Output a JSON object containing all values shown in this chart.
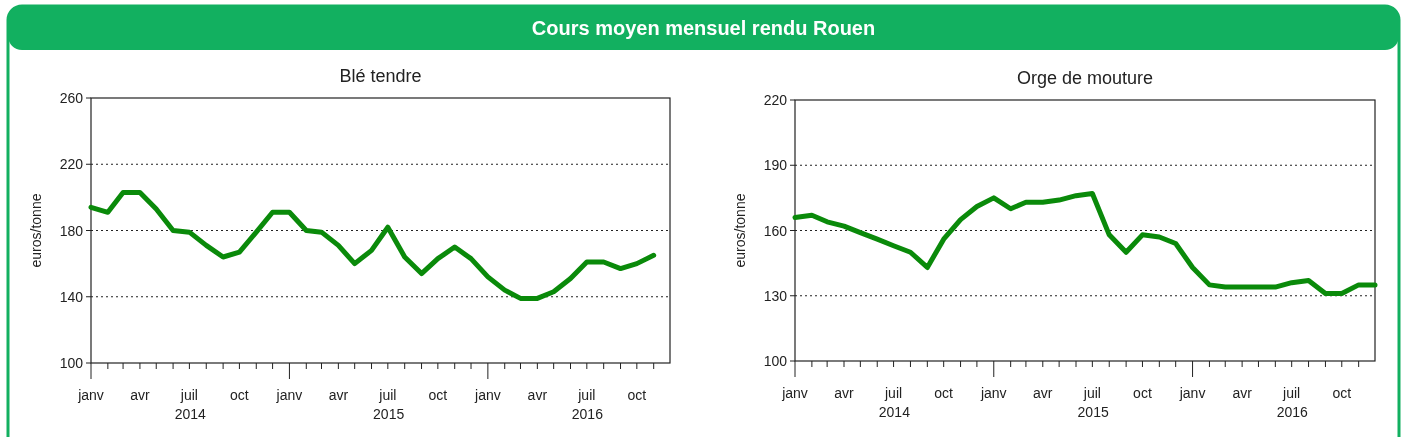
{
  "chart_data": [
    {
      "type": "other",
      "title": "Cours moyen mensuel rendu Rouen"
    },
    {
      "type": "line",
      "title": "Blé tendre",
      "ylabel": "euros/tonne",
      "x": [
        "2014-01",
        "2014-02",
        "2014-03",
        "2014-04",
        "2014-05",
        "2014-06",
        "2014-07",
        "2014-08",
        "2014-09",
        "2014-10",
        "2014-11",
        "2014-12",
        "2015-01",
        "2015-02",
        "2015-03",
        "2015-04",
        "2015-05",
        "2015-06",
        "2015-07",
        "2015-08",
        "2015-09",
        "2015-10",
        "2015-11",
        "2015-12",
        "2016-01",
        "2016-02",
        "2016-03",
        "2016-04",
        "2016-05",
        "2016-06",
        "2016-07",
        "2016-08",
        "2016-09",
        "2016-10",
        "2016-11"
      ],
      "series": [
        {
          "color": "#0a8a0a",
          "values": [
            194,
            191,
            203,
            203,
            193,
            180,
            179,
            171,
            164,
            167,
            179,
            191,
            191,
            180,
            179,
            171,
            160,
            168,
            182,
            164,
            154,
            163,
            170,
            163,
            152,
            144,
            139,
            139,
            143,
            151,
            161,
            161,
            157,
            160,
            165
          ]
        }
      ],
      "xlim": [
        "2014-01",
        "2016-12"
      ],
      "xticks": [
        {
          "value": "2014-01",
          "label": "janv"
        },
        {
          "value": "2014-02",
          "label": null
        },
        {
          "value": "2014-03",
          "label": null
        },
        {
          "value": "2014-04",
          "label": "avr"
        },
        {
          "value": "2014-05",
          "label": null
        },
        {
          "value": "2014-06",
          "label": null
        },
        {
          "value": "2014-07",
          "label": "juil"
        },
        {
          "value": "2014-08",
          "label": null
        },
        {
          "value": "2014-09",
          "label": null
        },
        {
          "value": "2014-10",
          "label": "oct"
        },
        {
          "value": "2014-11",
          "label": null
        },
        {
          "value": "2014-12",
          "label": null
        },
        {
          "value": "2015-01",
          "label": "janv"
        },
        {
          "value": "2015-02",
          "label": null
        },
        {
          "value": "2015-03",
          "label": null
        },
        {
          "value": "2015-04",
          "label": "avr"
        },
        {
          "value": "2015-05",
          "label": null
        },
        {
          "value": "2015-06",
          "label": null
        },
        {
          "value": "2015-07",
          "label": "juil"
        },
        {
          "value": "2015-08",
          "label": null
        },
        {
          "value": "2015-09",
          "label": null
        },
        {
          "value": "2015-10",
          "label": "oct"
        },
        {
          "value": "2015-11",
          "label": null
        },
        {
          "value": "2015-12",
          "label": null
        },
        {
          "value": "2016-01",
          "label": "janv"
        },
        {
          "value": "2016-02",
          "label": null
        },
        {
          "value": "2016-03",
          "label": null
        },
        {
          "value": "2016-04",
          "label": "avr"
        },
        {
          "value": "2016-05",
          "label": null
        },
        {
          "value": "2016-06",
          "label": null
        },
        {
          "value": "2016-07",
          "label": "juil"
        },
        {
          "value": "2016-08",
          "label": null
        },
        {
          "value": "2016-09",
          "label": null
        },
        {
          "value": "2016-10",
          "label": "oct"
        },
        {
          "value": "2016-11",
          "label": null
        }
      ],
      "ylim": [
        100,
        260
      ],
      "yticks": [
        100,
        140,
        180,
        220,
        260
      ],
      "grid": "y",
      "marker": "none",
      "line_style": "solid",
      "annotations": [
        "2014",
        "2015",
        "2016"
      ]
    },
    {
      "type": "line",
      "title": "Orge de mouture",
      "ylabel": "euros/tonne",
      "x": [
        "2014-01",
        "2014-02",
        "2014-03",
        "2014-04",
        "2014-05",
        "2014-06",
        "2014-07",
        "2014-08",
        "2014-09",
        "2014-10",
        "2014-11",
        "2014-12",
        "2015-01",
        "2015-02",
        "2015-03",
        "2015-04",
        "2015-05",
        "2015-06",
        "2015-07",
        "2015-08",
        "2015-09",
        "2015-10",
        "2015-11",
        "2015-12",
        "2016-01",
        "2016-02",
        "2016-03",
        "2016-04",
        "2016-05",
        "2016-06",
        "2016-07",
        "2016-08",
        "2016-09",
        "2016-10",
        "2016-11",
        "2016-12"
      ],
      "series": [
        {
          "color": "#0a8a0a",
          "values": [
            166,
            167,
            164,
            162,
            159,
            156,
            153,
            150,
            143,
            156,
            165,
            171,
            175,
            170,
            173,
            173,
            174,
            176,
            177,
            158,
            150,
            158,
            157,
            154,
            143,
            135,
            134,
            134,
            134,
            134,
            136,
            137,
            131,
            131,
            135,
            135
          ]
        }
      ],
      "xlim": [
        "2014-01",
        "2016-12"
      ],
      "xticks": [
        {
          "value": "2014-01",
          "label": "janv"
        },
        {
          "value": "2014-02",
          "label": null
        },
        {
          "value": "2014-03",
          "label": null
        },
        {
          "value": "2014-04",
          "label": "avr"
        },
        {
          "value": "2014-05",
          "label": null
        },
        {
          "value": "2014-06",
          "label": null
        },
        {
          "value": "2014-07",
          "label": "juil"
        },
        {
          "value": "2014-08",
          "label": null
        },
        {
          "value": "2014-09",
          "label": null
        },
        {
          "value": "2014-10",
          "label": "oct"
        },
        {
          "value": "2014-11",
          "label": null
        },
        {
          "value": "2014-12",
          "label": null
        },
        {
          "value": "2015-01",
          "label": "janv"
        },
        {
          "value": "2015-02",
          "label": null
        },
        {
          "value": "2015-03",
          "label": null
        },
        {
          "value": "2015-04",
          "label": "avr"
        },
        {
          "value": "2015-05",
          "label": null
        },
        {
          "value": "2015-06",
          "label": null
        },
        {
          "value": "2015-07",
          "label": "juil"
        },
        {
          "value": "2015-08",
          "label": null
        },
        {
          "value": "2015-09",
          "label": null
        },
        {
          "value": "2015-10",
          "label": "oct"
        },
        {
          "value": "2015-11",
          "label": null
        },
        {
          "value": "2015-12",
          "label": null
        },
        {
          "value": "2016-01",
          "label": "janv"
        },
        {
          "value": "2016-02",
          "label": null
        },
        {
          "value": "2016-03",
          "label": null
        },
        {
          "value": "2016-04",
          "label": "avr"
        },
        {
          "value": "2016-05",
          "label": null
        },
        {
          "value": "2016-06",
          "label": null
        },
        {
          "value": "2016-07",
          "label": "juil"
        },
        {
          "value": "2016-08",
          "label": null
        },
        {
          "value": "2016-09",
          "label": null
        },
        {
          "value": "2016-10",
          "label": "oct"
        },
        {
          "value": "2016-11",
          "label": null
        }
      ],
      "ylim": [
        100,
        220
      ],
      "yticks": [
        100,
        130,
        160,
        190,
        220
      ],
      "grid": "y",
      "marker": "none",
      "line_style": "solid",
      "annotations": [
        "2014",
        "2015",
        "2016"
      ]
    }
  ]
}
